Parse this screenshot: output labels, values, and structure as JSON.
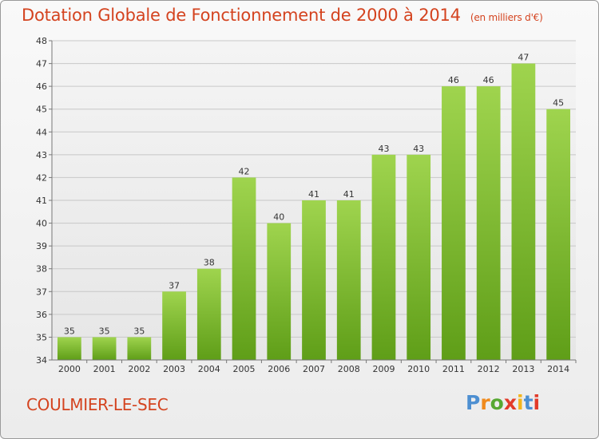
{
  "header": {
    "title": "Dotation Globale de Fonctionnement de 2000 à 2014",
    "unit": "(en milliers d'€)"
  },
  "footer": {
    "place": "COULMIER-LE-SEC",
    "logo": "Proxiti"
  },
  "colors": {
    "title": "#d4431f",
    "bar_light": "#9fd44e",
    "bar_dark": "#5f9e18",
    "grid": "#c8c8c8",
    "logo_letters": [
      "#4d8fd1",
      "#f08a1c",
      "#57a832",
      "#e23b2a",
      "#f3b51c",
      "#4d8fd1",
      "#e23b2a"
    ]
  },
  "chart_data": {
    "type": "bar",
    "title": "Dotation Globale de Fonctionnement de 2000 à 2014",
    "subtitle": "(en milliers d'€)",
    "xlabel": "",
    "ylabel": "",
    "categories": [
      "2000",
      "2001",
      "2002",
      "2003",
      "2004",
      "2005",
      "2006",
      "2007",
      "2008",
      "2009",
      "2010",
      "2011",
      "2012",
      "2013",
      "2014"
    ],
    "values": [
      35,
      35,
      35,
      37,
      38,
      42,
      40,
      41,
      41,
      43,
      43,
      46,
      46,
      47,
      45
    ],
    "ylim": [
      34,
      48
    ],
    "yticks": [
      34,
      35,
      36,
      37,
      38,
      39,
      40,
      41,
      42,
      43,
      44,
      45,
      46,
      47,
      48
    ],
    "grid": true,
    "data_labels": true
  }
}
